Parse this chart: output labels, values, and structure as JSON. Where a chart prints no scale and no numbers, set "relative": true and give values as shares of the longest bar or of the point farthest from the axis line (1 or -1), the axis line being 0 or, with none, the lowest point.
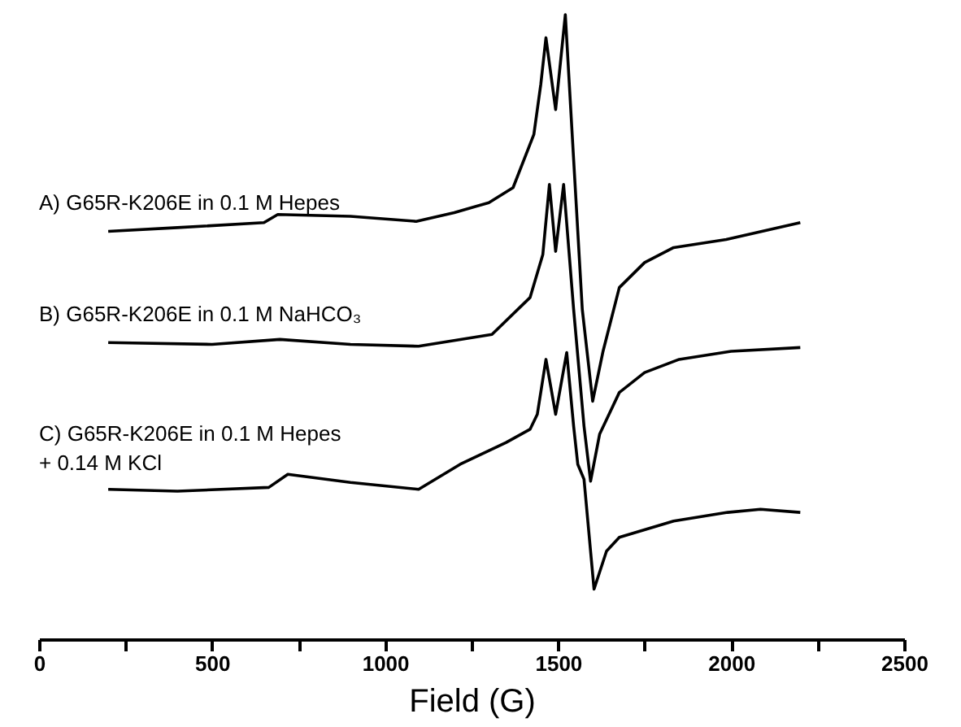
{
  "chart_data": {
    "type": "line",
    "relative": true,
    "xlabel": "Field (G)",
    "xlim": [
      0,
      2500
    ],
    "xticks": [
      0,
      {
        "value": 250,
        "label": null
      },
      500,
      {
        "value": 750,
        "label": null
      },
      1000,
      {
        "value": 1250,
        "label": null
      },
      1500,
      {
        "value": 1750,
        "label": null
      },
      2000,
      {
        "value": 2250,
        "label": null
      },
      2500
    ],
    "tick_labels": "x",
    "grid": false,
    "marker": "none",
    "line_style": "solid",
    "series": [
      {
        "name": "A) G65R-K206E in 0.1 M Hepes",
        "color": "#000000",
        "x": [
          200,
          400,
          650,
          690,
          900,
          1090,
          1200,
          1300,
          1370,
          1430,
          1450,
          1465,
          1493,
          1521,
          1545,
          1570,
          1600,
          1630,
          1677,
          1750,
          1834,
          1986,
          2200
        ],
        "values": [
          0.653,
          0.659,
          0.667,
          0.68,
          0.677,
          0.669,
          0.683,
          0.699,
          0.723,
          0.808,
          0.888,
          0.963,
          0.848,
          1.0,
          0.768,
          0.528,
          0.381,
          0.461,
          0.563,
          0.603,
          0.627,
          0.64,
          0.667
        ]
      },
      {
        "name": "B) G65R-K206E in 0.1 M NaHCO₃",
        "color": "#000000",
        "x": [
          200,
          500,
          696,
          900,
          1097,
          1309,
          1419,
          1456,
          1475,
          1493,
          1516,
          1545,
          1575,
          1594,
          1620,
          1677,
          1750,
          1850,
          2000,
          2200
        ],
        "values": [
          0.475,
          0.472,
          0.48,
          0.472,
          0.469,
          0.488,
          0.547,
          0.616,
          0.728,
          0.621,
          0.728,
          0.528,
          0.341,
          0.253,
          0.328,
          0.395,
          0.427,
          0.448,
          0.461,
          0.467
        ]
      },
      {
        "name": "C) G65R-K206E in 0.1 M Hepes\n+ 0.14 M KCl",
        "color": "#000000",
        "x": [
          200,
          400,
          664,
          719,
          900,
          1097,
          1217,
          1350,
          1419,
          1440,
          1465,
          1493,
          1525,
          1545,
          1557,
          1575,
          1604,
          1640,
          1677,
          1834,
          1990,
          2085,
          2200
        ],
        "values": [
          0.24,
          0.237,
          0.243,
          0.264,
          0.251,
          0.24,
          0.28,
          0.315,
          0.336,
          0.36,
          0.448,
          0.36,
          0.459,
          0.341,
          0.28,
          0.256,
          0.08,
          0.141,
          0.163,
          0.189,
          0.203,
          0.208,
          0.203
        ]
      }
    ]
  }
}
